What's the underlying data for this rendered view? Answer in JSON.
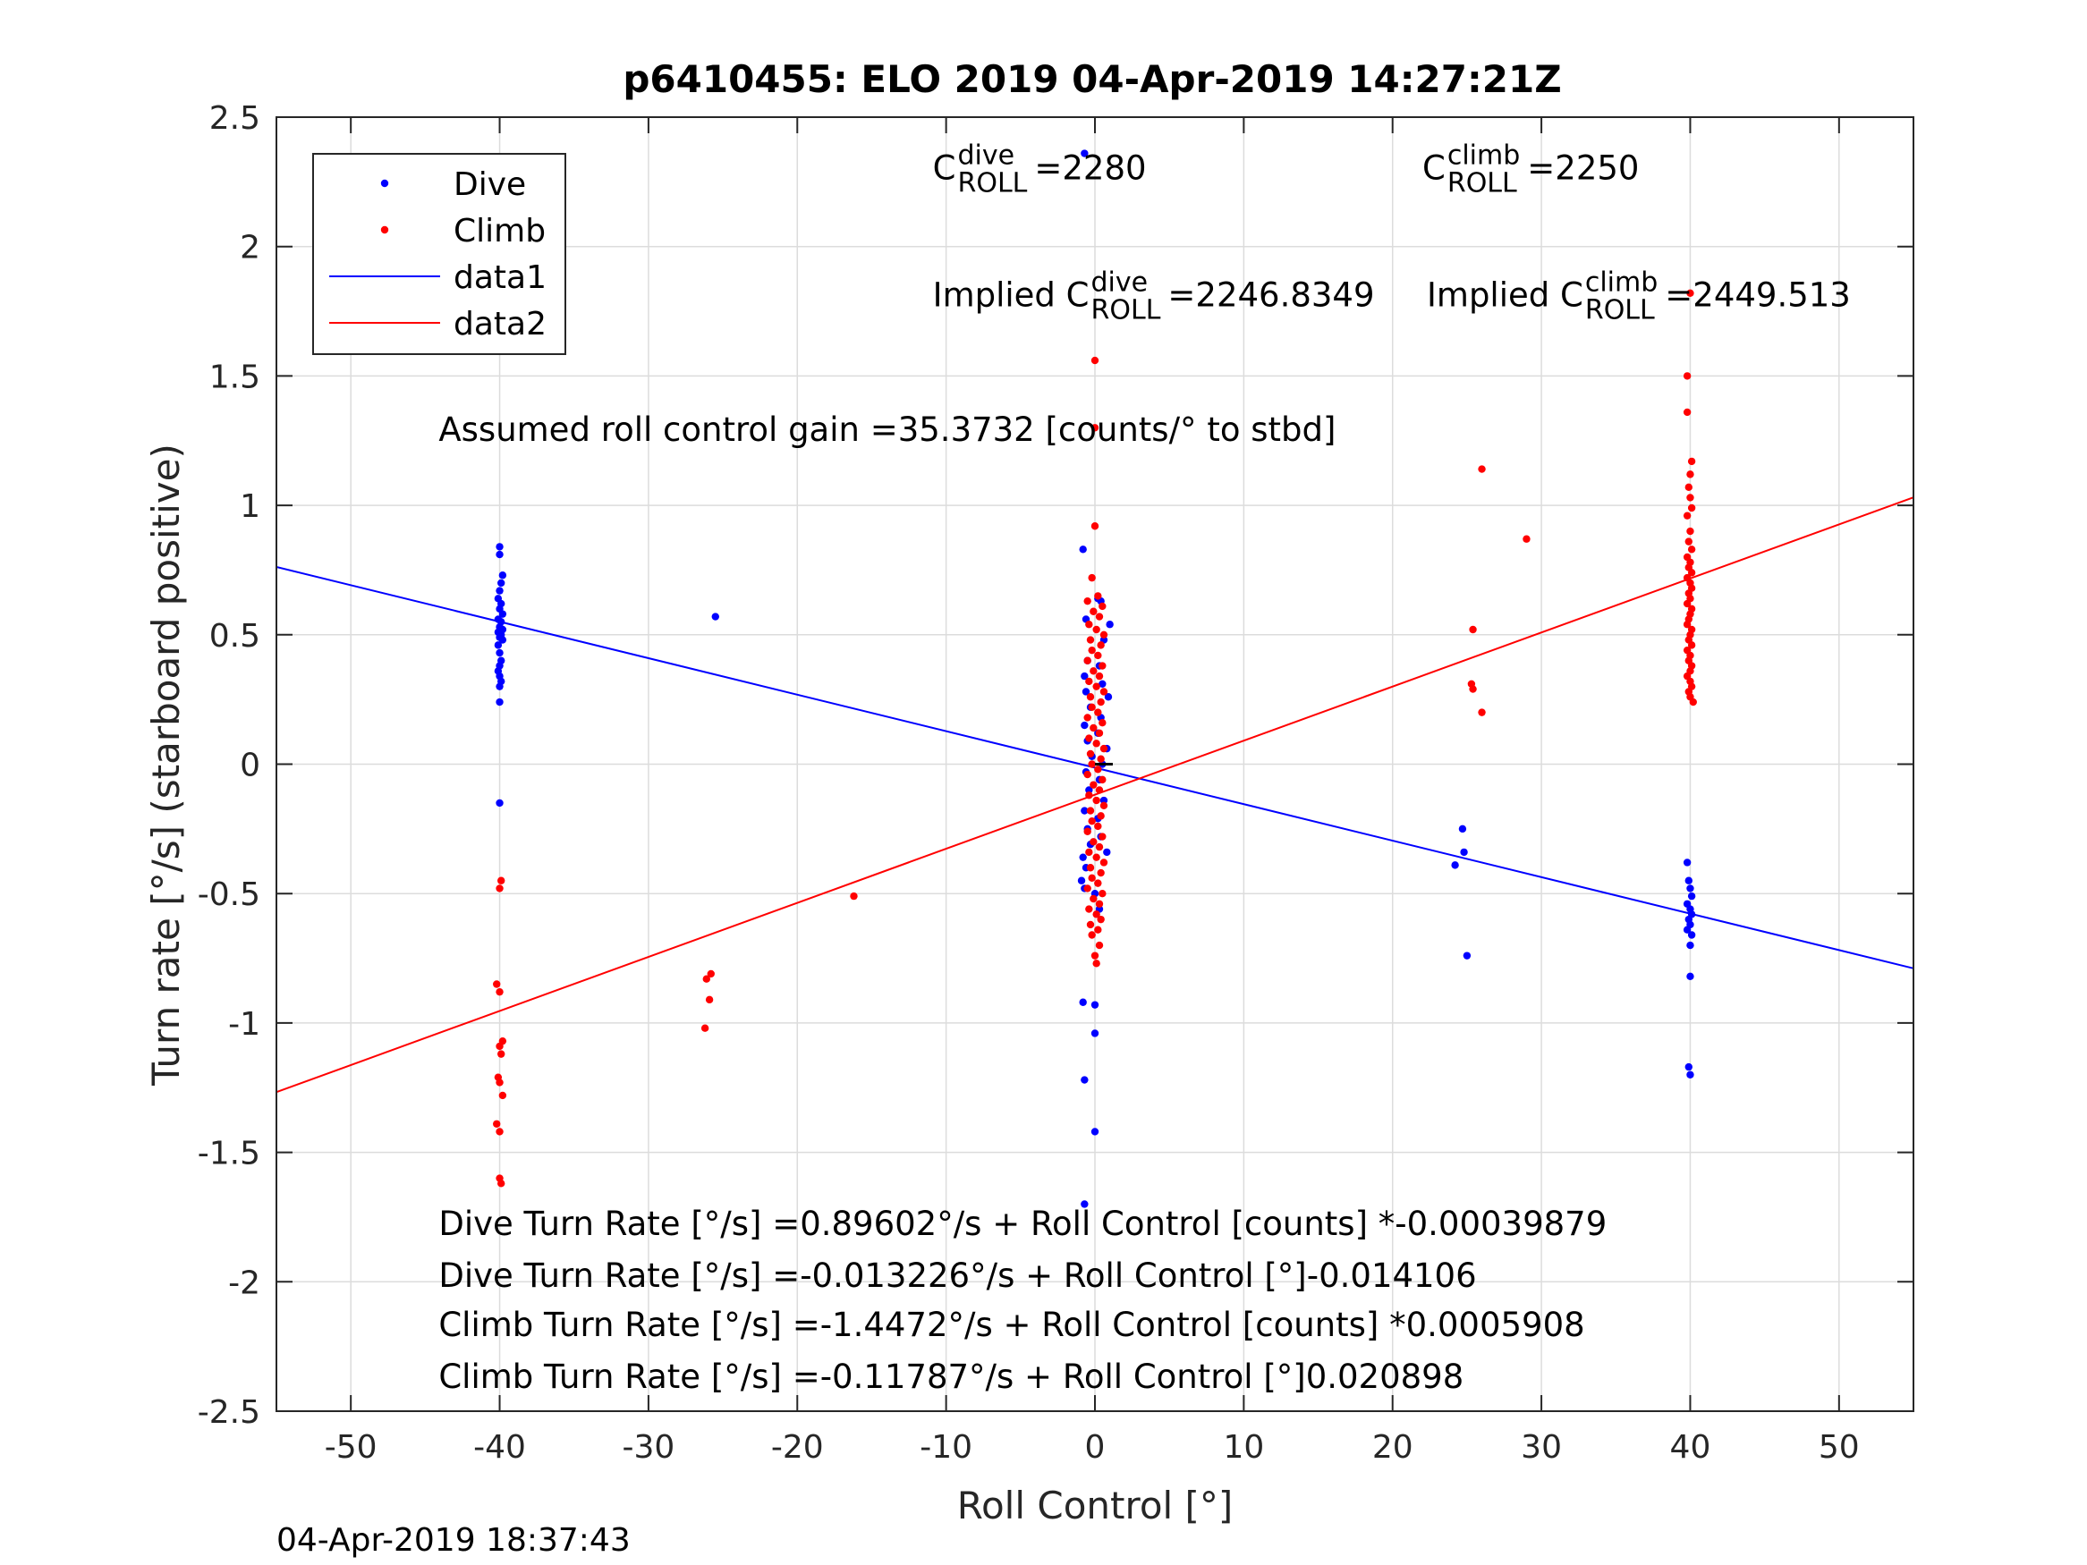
{
  "chart_data": {
    "type": "scatter",
    "title": "p6410455: ELO 2019 04-Apr-2019 14:27:21Z",
    "xlabel": "Roll Control [°]",
    "ylabel": "Turn rate [°/s] (starboard positive)",
    "xlim": [
      -55,
      55
    ],
    "ylim": [
      -2.5,
      2.5
    ],
    "xticks": [
      -50,
      -40,
      -30,
      -20,
      -10,
      0,
      10,
      20,
      30,
      40,
      50
    ],
    "xtick_labels": [
      "-50",
      "-40",
      "-30",
      "-20",
      "-10",
      "0",
      "10",
      "20",
      "30",
      "40",
      "50"
    ],
    "yticks": [
      -2.5,
      -2,
      -1.5,
      -1,
      -0.5,
      0,
      0.5,
      1,
      1.5,
      2,
      2.5
    ],
    "ytick_labels": [
      "-2.5",
      "-2",
      "-1.5",
      "-1",
      "-0.5",
      "0",
      "0.5",
      "1",
      "1.5",
      "2",
      "2.5"
    ],
    "grid": true,
    "legend_position": "top-left",
    "colors": {
      "dive": "#0000ff",
      "climb": "#ff0000",
      "axis": "#262626",
      "grid": "#dcdcdc"
    },
    "series": [
      {
        "name": "Dive",
        "kind": "points",
        "color": "#0000ff",
        "points": [
          [
            -40,
            0.84
          ],
          [
            -40,
            0.81
          ],
          [
            -39.8,
            0.73
          ],
          [
            -39.9,
            0.7
          ],
          [
            -40,
            0.67
          ],
          [
            -40.1,
            0.64
          ],
          [
            -39.9,
            0.62
          ],
          [
            -40,
            0.6
          ],
          [
            -39.8,
            0.58
          ],
          [
            -40.1,
            0.56
          ],
          [
            -39.9,
            0.55
          ],
          [
            -40,
            0.53
          ],
          [
            -39.8,
            0.52
          ],
          [
            -40.1,
            0.51
          ],
          [
            -39.9,
            0.5
          ],
          [
            -40,
            0.49
          ],
          [
            -39.8,
            0.48
          ],
          [
            -40.1,
            0.46
          ],
          [
            -40,
            0.43
          ],
          [
            -39.9,
            0.4
          ],
          [
            -40,
            0.38
          ],
          [
            -40.1,
            0.36
          ],
          [
            -40,
            0.34
          ],
          [
            -39.9,
            0.32
          ],
          [
            -40,
            0.3
          ],
          [
            -40,
            0.24
          ],
          [
            -40,
            -0.15
          ],
          [
            -25.5,
            0.57
          ],
          [
            -0.7,
            2.36
          ],
          [
            -0.8,
            0.83
          ],
          [
            -0.6,
            0.56
          ],
          [
            0.2,
            0.64
          ],
          [
            0.4,
            0.63
          ],
          [
            1,
            0.54
          ],
          [
            0.6,
            0.48
          ],
          [
            -0.5,
            0.4
          ],
          [
            0.3,
            0.38
          ],
          [
            -0.7,
            0.34
          ],
          [
            0.5,
            0.31
          ],
          [
            -0.6,
            0.28
          ],
          [
            0.9,
            0.26
          ],
          [
            -0.3,
            0.22
          ],
          [
            0.4,
            0.18
          ],
          [
            -0.7,
            0.15
          ],
          [
            0.2,
            0.12
          ],
          [
            -0.5,
            0.09
          ],
          [
            0.8,
            0.06
          ],
          [
            -0.2,
            0.03
          ],
          [
            0.5,
            0.0
          ],
          [
            -0.6,
            -0.03
          ],
          [
            0.3,
            -0.06
          ],
          [
            -0.4,
            -0.1
          ],
          [
            0.6,
            -0.14
          ],
          [
            -0.7,
            -0.18
          ],
          [
            0.2,
            -0.21
          ],
          [
            -0.5,
            -0.25
          ],
          [
            0.4,
            -0.28
          ],
          [
            -0.3,
            -0.31
          ],
          [
            0.8,
            -0.34
          ],
          [
            -0.8,
            -0.36
          ],
          [
            -0.6,
            -0.4
          ],
          [
            -0.9,
            -0.45
          ],
          [
            -0.7,
            -0.48
          ],
          [
            0,
            -0.5
          ],
          [
            0.3,
            -0.56
          ],
          [
            -0.8,
            -0.92
          ],
          [
            0,
            -0.93
          ],
          [
            0,
            -1.04
          ],
          [
            -0.7,
            -1.22
          ],
          [
            0,
            -1.42
          ],
          [
            -0.7,
            -1.7
          ],
          [
            24.7,
            -0.25
          ],
          [
            24.8,
            -0.34
          ],
          [
            24.2,
            -0.39
          ],
          [
            25,
            -0.74
          ],
          [
            39.8,
            -0.38
          ],
          [
            39.9,
            -0.45
          ],
          [
            40,
            -0.48
          ],
          [
            40.1,
            -0.51
          ],
          [
            39.8,
            -0.54
          ],
          [
            40,
            -0.56
          ],
          [
            40.1,
            -0.58
          ],
          [
            39.9,
            -0.6
          ],
          [
            40,
            -0.62
          ],
          [
            39.8,
            -0.64
          ],
          [
            40.1,
            -0.66
          ],
          [
            40,
            -0.7
          ],
          [
            40,
            -0.82
          ],
          [
            39.9,
            -1.17
          ],
          [
            40,
            -1.2
          ]
        ]
      },
      {
        "name": "Climb",
        "kind": "points",
        "color": "#ff0000",
        "points": [
          [
            -39.9,
            -0.45
          ],
          [
            -40,
            -0.48
          ],
          [
            -40.2,
            -0.85
          ],
          [
            -40,
            -0.88
          ],
          [
            -39.8,
            -1.07
          ],
          [
            -40,
            -1.09
          ],
          [
            -39.9,
            -1.12
          ],
          [
            -40.1,
            -1.21
          ],
          [
            -40,
            -1.23
          ],
          [
            -39.8,
            -1.28
          ],
          [
            -40.2,
            -1.39
          ],
          [
            -40,
            -1.42
          ],
          [
            -40,
            -1.6
          ],
          [
            -39.9,
            -1.62
          ],
          [
            -25.8,
            -0.81
          ],
          [
            -26.1,
            -0.83
          ],
          [
            -25.9,
            -0.91
          ],
          [
            -26.2,
            -1.02
          ],
          [
            -16.2,
            -0.51
          ],
          [
            0,
            1.56
          ],
          [
            0,
            1.3
          ],
          [
            0,
            0.92
          ],
          [
            -0.2,
            0.72
          ],
          [
            0.2,
            0.65
          ],
          [
            -0.5,
            0.63
          ],
          [
            0.5,
            0.61
          ],
          [
            -0.1,
            0.59
          ],
          [
            0.3,
            0.57
          ],
          [
            -0.4,
            0.54
          ],
          [
            0.1,
            0.52
          ],
          [
            0.6,
            0.5
          ],
          [
            -0.3,
            0.48
          ],
          [
            0.4,
            0.46
          ],
          [
            -0.2,
            0.44
          ],
          [
            0.2,
            0.42
          ],
          [
            -0.5,
            0.4
          ],
          [
            0.5,
            0.38
          ],
          [
            -0.1,
            0.36
          ],
          [
            0.3,
            0.34
          ],
          [
            -0.4,
            0.32
          ],
          [
            0.1,
            0.3
          ],
          [
            0.6,
            0.28
          ],
          [
            -0.3,
            0.26
          ],
          [
            0.4,
            0.24
          ],
          [
            -0.2,
            0.22
          ],
          [
            0.2,
            0.2
          ],
          [
            -0.5,
            0.18
          ],
          [
            0.5,
            0.16
          ],
          [
            -0.1,
            0.14
          ],
          [
            0.3,
            0.12
          ],
          [
            -0.4,
            0.1
          ],
          [
            0.1,
            0.08
          ],
          [
            0.6,
            0.06
          ],
          [
            -0.3,
            0.04
          ],
          [
            0.4,
            0.02
          ],
          [
            -0.2,
            0.0
          ],
          [
            0.2,
            -0.02
          ],
          [
            -0.5,
            -0.04
          ],
          [
            0.5,
            -0.06
          ],
          [
            -0.1,
            -0.08
          ],
          [
            0.3,
            -0.1
          ],
          [
            -0.4,
            -0.12
          ],
          [
            0.1,
            -0.14
          ],
          [
            0.6,
            -0.16
          ],
          [
            -0.3,
            -0.18
          ],
          [
            0.4,
            -0.2
          ],
          [
            -0.2,
            -0.22
          ],
          [
            0.2,
            -0.24
          ],
          [
            -0.5,
            -0.26
          ],
          [
            0.5,
            -0.28
          ],
          [
            -0.1,
            -0.3
          ],
          [
            0.3,
            -0.32
          ],
          [
            -0.4,
            -0.34
          ],
          [
            0.1,
            -0.36
          ],
          [
            0.6,
            -0.38
          ],
          [
            -0.3,
            -0.4
          ],
          [
            0.4,
            -0.42
          ],
          [
            -0.2,
            -0.44
          ],
          [
            0.2,
            -0.46
          ],
          [
            -0.5,
            -0.48
          ],
          [
            0.5,
            -0.5
          ],
          [
            -0.1,
            -0.52
          ],
          [
            0.3,
            -0.54
          ],
          [
            -0.4,
            -0.56
          ],
          [
            0.1,
            -0.58
          ],
          [
            0.4,
            -0.6
          ],
          [
            -0.3,
            -0.62
          ],
          [
            0.2,
            -0.64
          ],
          [
            -0.2,
            -0.66
          ],
          [
            0.3,
            -0.7
          ],
          [
            0,
            -0.74
          ],
          [
            0.1,
            -0.77
          ],
          [
            25.4,
            0.52
          ],
          [
            25.3,
            0.31
          ],
          [
            25.4,
            0.29
          ],
          [
            26,
            0.2
          ],
          [
            26,
            1.14
          ],
          [
            29,
            0.87
          ],
          [
            40,
            1.82
          ],
          [
            39.8,
            1.5
          ],
          [
            39.8,
            1.36
          ],
          [
            40.1,
            1.17
          ],
          [
            40,
            1.12
          ],
          [
            39.9,
            1.07
          ],
          [
            40,
            1.03
          ],
          [
            40.1,
            0.99
          ],
          [
            39.8,
            0.96
          ],
          [
            40,
            0.9
          ],
          [
            39.9,
            0.86
          ],
          [
            40.1,
            0.83
          ],
          [
            39.8,
            0.8
          ],
          [
            40,
            0.78
          ],
          [
            39.9,
            0.76
          ],
          [
            40.1,
            0.74
          ],
          [
            39.8,
            0.72
          ],
          [
            40,
            0.7
          ],
          [
            40.1,
            0.68
          ],
          [
            39.9,
            0.66
          ],
          [
            40,
            0.64
          ],
          [
            39.8,
            0.62
          ],
          [
            40.1,
            0.6
          ],
          [
            40,
            0.58
          ],
          [
            39.9,
            0.56
          ],
          [
            39.8,
            0.54
          ],
          [
            40.1,
            0.52
          ],
          [
            40,
            0.5
          ],
          [
            39.9,
            0.48
          ],
          [
            40.1,
            0.46
          ],
          [
            39.8,
            0.44
          ],
          [
            40,
            0.42
          ],
          [
            39.9,
            0.4
          ],
          [
            40.1,
            0.38
          ],
          [
            40,
            0.36
          ],
          [
            39.8,
            0.34
          ],
          [
            40,
            0.32
          ],
          [
            40.1,
            0.3
          ],
          [
            39.9,
            0.28
          ],
          [
            40,
            0.26
          ],
          [
            40.2,
            0.24
          ]
        ]
      },
      {
        "name": "data1",
        "kind": "line",
        "color": "#0000ff",
        "x": [
          -55,
          55
        ],
        "y": [
          0.762,
          -0.789
        ]
      },
      {
        "name": "data2",
        "kind": "line",
        "color": "#ff0000",
        "x": [
          -55,
          55
        ],
        "y": [
          -1.267,
          1.031
        ]
      }
    ],
    "zero_marker": {
      "x1": 0,
      "x2": 1.2,
      "y": 0
    },
    "annotations": [
      {
        "main": "C",
        "sup": "dive",
        "sub": "ROLL",
        "value": "=2280",
        "x": -10.9,
        "y": 2.26
      },
      {
        "main": "C",
        "sup": "climb",
        "sub": "ROLL",
        "value": "=2250",
        "x": 22,
        "y": 2.26
      },
      {
        "main": "Implied C",
        "sup": "dive",
        "sub": "ROLL",
        "value": "=2246.8349",
        "x": -10.9,
        "y": 1.77
      },
      {
        "main": "Implied C",
        "sup": "climb",
        "sub": "ROLL",
        "value": "=2449.513",
        "x": 22.3,
        "y": 1.77
      },
      {
        "text": "Assumed roll control gain =35.3732 [counts/° to stbd]",
        "x": -44.1,
        "y": 1.25
      },
      {
        "text": "Dive Turn Rate [°/s] =0.89602°/s + Roll Control [counts] *-0.00039879",
        "x": -44.1,
        "y": -1.82
      },
      {
        "text": "Dive Turn Rate [°/s] =-0.013226°/s + Roll Control [°]-0.014106",
        "x": -44.1,
        "y": -2.02
      },
      {
        "text": "Climb Turn Rate [°/s] =-1.4472°/s + Roll Control [counts] *0.0005908",
        "x": -44.1,
        "y": -2.21
      },
      {
        "text": "Climb Turn Rate [°/s] =-0.11787°/s + Roll Control [°]0.020898",
        "x": -44.1,
        "y": -2.41
      }
    ],
    "legend": [
      {
        "label": "Dive",
        "kind": "point",
        "color": "#0000ff"
      },
      {
        "label": "Climb",
        "kind": "point",
        "color": "#ff0000"
      },
      {
        "label": "data1",
        "kind": "line",
        "color": "#0000ff"
      },
      {
        "label": "data2",
        "kind": "line",
        "color": "#ff0000"
      }
    ],
    "footer": "04-Apr-2019 18:37:43"
  }
}
